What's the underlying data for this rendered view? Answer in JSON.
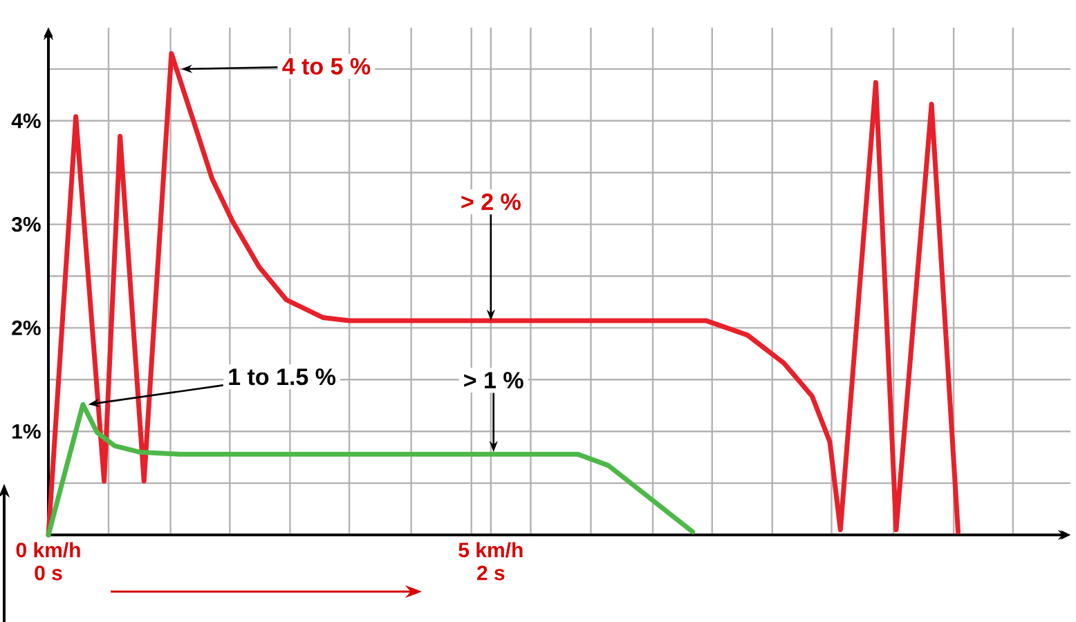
{
  "chart_data": {
    "type": "line",
    "marker": "none",
    "grid": true,
    "xlim": [
      0,
      11.55
    ],
    "ylim": [
      0,
      4.9
    ],
    "x2lim": [
      0,
      4.62
    ],
    "xticks": [
      {
        "value": 0,
        "label": "0 km/h"
      },
      {
        "value": 0.68,
        "label": null
      },
      {
        "value": 1.38,
        "label": null
      },
      {
        "value": 2.05,
        "label": null
      },
      {
        "value": 2.73,
        "label": null
      },
      {
        "value": 3.4,
        "label": null
      },
      {
        "value": 4.1,
        "label": null
      },
      {
        "value": 4.78,
        "label": null
      },
      {
        "value": 5,
        "label": "5 km/h"
      },
      {
        "value": 5.45,
        "label": null
      },
      {
        "value": 6.13,
        "label": null
      },
      {
        "value": 6.83,
        "label": null
      },
      {
        "value": 7.5,
        "label": null
      },
      {
        "value": 8.18,
        "label": null
      },
      {
        "value": 8.85,
        "label": null
      },
      {
        "value": 9.55,
        "label": null
      },
      {
        "value": 10.23,
        "label": null
      },
      {
        "value": 10.9,
        "label": null
      }
    ],
    "x2ticks": [
      {
        "value": 0,
        "label": "0 s"
      },
      {
        "value": 2,
        "label": "2 s"
      }
    ],
    "yticks": [
      {
        "value": 0.5,
        "label": null
      },
      {
        "value": 1,
        "label": "1%"
      },
      {
        "value": 1.5,
        "label": null
      },
      {
        "value": 2,
        "label": "2%"
      },
      {
        "value": 2.5,
        "label": null
      },
      {
        "value": 3,
        "label": "3%"
      },
      {
        "value": 3.5,
        "label": null
      },
      {
        "value": 4,
        "label": "4%"
      },
      {
        "value": 4.5,
        "label": null
      }
    ],
    "series": [
      {
        "color": "#e8202a",
        "x": [
          0,
          0.31,
          0.63,
          0.81,
          1.08,
          1.39,
          1.65,
          1.85,
          2.08,
          2.38,
          2.69,
          3.1,
          3.4,
          7.43,
          7.9,
          8.31,
          8.63,
          8.83,
          8.95,
          9.35,
          9.58,
          9.98,
          10.28
        ],
        "values": [
          0,
          4.04,
          0.52,
          3.85,
          0.52,
          4.65,
          3.97,
          3.44,
          3.03,
          2.59,
          2.27,
          2.1,
          2.07,
          2.07,
          1.93,
          1.66,
          1.34,
          0.9,
          0.05,
          4.37,
          0.05,
          4.16,
          0.03
        ]
      },
      {
        "color": "#4db848",
        "x": [
          0,
          0.39,
          0.55,
          0.75,
          1.03,
          1.48,
          5.98,
          6.33,
          6.73,
          7.28
        ],
        "values": [
          0,
          1.26,
          0.99,
          0.86,
          0.8,
          0.78,
          0.78,
          0.67,
          0.4,
          0.03
        ]
      }
    ],
    "annotations": [
      {
        "text": "4 to 5 %",
        "x": 1.5,
        "y": 4.5
      },
      {
        "text": "> 2 %",
        "x": 5.0,
        "y": 2.07
      },
      {
        "text": "1 to 1.5 %",
        "x": 0.45,
        "y": 1.26
      },
      {
        "text": "> 1 %",
        "x": 5.03,
        "y": 0.8
      }
    ]
  }
}
